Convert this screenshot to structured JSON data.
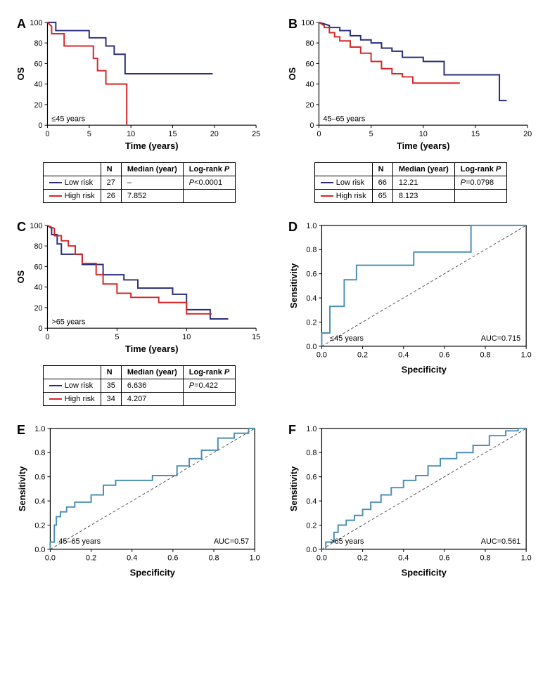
{
  "colors": {
    "low_risk": "#2a2d7c",
    "high_risk": "#d62728",
    "roc": "#4a8fb5",
    "axis": "#000000",
    "diag": "#555555"
  },
  "panelA": {
    "label": "A",
    "type": "line",
    "ylabel": "OS",
    "xlabel": "Time (years)",
    "ylim": [
      0,
      100
    ],
    "ytick_step": 20,
    "xlim": [
      0,
      25
    ],
    "xtick_step": 5,
    "corner": "≤45 years",
    "series": [
      {
        "name": "low",
        "points": [
          [
            0,
            100
          ],
          [
            1,
            100
          ],
          [
            1,
            92
          ],
          [
            5,
            92
          ],
          [
            5,
            85
          ],
          [
            7,
            85
          ],
          [
            7,
            77
          ],
          [
            8,
            77
          ],
          [
            8,
            69
          ],
          [
            9.3,
            69
          ],
          [
            9.3,
            50
          ],
          [
            19.8,
            50
          ]
        ]
      },
      {
        "name": "high",
        "points": [
          [
            0,
            100
          ],
          [
            0.5,
            96
          ],
          [
            0.5,
            89
          ],
          [
            2,
            89
          ],
          [
            2,
            77
          ],
          [
            3.5,
            77
          ],
          [
            5.5,
            77
          ],
          [
            5.5,
            65
          ],
          [
            6,
            65
          ],
          [
            6,
            53
          ],
          [
            7,
            53
          ],
          [
            7,
            40
          ],
          [
            9.5,
            40
          ],
          [
            9.5,
            0
          ]
        ]
      }
    ],
    "table": {
      "headers": [
        "",
        "N",
        "Median (year)",
        "Log-rank P"
      ],
      "rows": [
        {
          "legend": "low",
          "label": "Low risk",
          "cells": [
            "27",
            "–",
            "P<0.0001"
          ]
        },
        {
          "legend": "high",
          "label": "High risk",
          "cells": [
            "26",
            "7.852",
            ""
          ]
        }
      ]
    }
  },
  "panelB": {
    "label": "B",
    "type": "line",
    "ylabel": "OS",
    "xlabel": "Time (years)",
    "ylim": [
      0,
      100
    ],
    "ytick_step": 20,
    "xlim": [
      0,
      20
    ],
    "xtick_step": 5,
    "corner": "45–65 years",
    "series": [
      {
        "name": "low",
        "points": [
          [
            0,
            100
          ],
          [
            1,
            97
          ],
          [
            1,
            95
          ],
          [
            2,
            95
          ],
          [
            2,
            92
          ],
          [
            3,
            92
          ],
          [
            3,
            87
          ],
          [
            4,
            87
          ],
          [
            4,
            83
          ],
          [
            5,
            83
          ],
          [
            5,
            80
          ],
          [
            6,
            80
          ],
          [
            6,
            75
          ],
          [
            7,
            75
          ],
          [
            7,
            72
          ],
          [
            8,
            72
          ],
          [
            8,
            66
          ],
          [
            10,
            66
          ],
          [
            10,
            62
          ],
          [
            12,
            62
          ],
          [
            12,
            49
          ],
          [
            17.3,
            49
          ],
          [
            17.3,
            24
          ],
          [
            18,
            24
          ]
        ]
      },
      {
        "name": "high",
        "points": [
          [
            0,
            100
          ],
          [
            0.5,
            97
          ],
          [
            0.5,
            95
          ],
          [
            1,
            95
          ],
          [
            1,
            90
          ],
          [
            1.5,
            90
          ],
          [
            1.5,
            86
          ],
          [
            2,
            86
          ],
          [
            2,
            82
          ],
          [
            3,
            82
          ],
          [
            3,
            76
          ],
          [
            4,
            76
          ],
          [
            4,
            70
          ],
          [
            5,
            70
          ],
          [
            5,
            62
          ],
          [
            6,
            62
          ],
          [
            6,
            55
          ],
          [
            7,
            55
          ],
          [
            7,
            50
          ],
          [
            8,
            50
          ],
          [
            8,
            47
          ],
          [
            9,
            47
          ],
          [
            9,
            41
          ],
          [
            13.5,
            41
          ]
        ]
      }
    ],
    "table": {
      "headers": [
        "",
        "N",
        "Median (year)",
        "Log-rank P"
      ],
      "rows": [
        {
          "legend": "low",
          "label": "Low risk",
          "cells": [
            "66",
            "12.21",
            "P=0.0798"
          ]
        },
        {
          "legend": "high",
          "label": "High risk",
          "cells": [
            "65",
            "8.123",
            ""
          ]
        }
      ]
    }
  },
  "panelC": {
    "label": "C",
    "type": "line",
    "ylabel": "OS",
    "xlabel": "Time (years)",
    "ylim": [
      0,
      100
    ],
    "ytick_step": 20,
    "xlim": [
      0,
      15
    ],
    "xtick_step": 5,
    "corner": ">65 years",
    "series": [
      {
        "name": "low",
        "points": [
          [
            0,
            100
          ],
          [
            0.3,
            97
          ],
          [
            0.3,
            91
          ],
          [
            0.7,
            91
          ],
          [
            0.7,
            82
          ],
          [
            1,
            82
          ],
          [
            1,
            72
          ],
          [
            2.5,
            72
          ],
          [
            2.5,
            62
          ],
          [
            4,
            62
          ],
          [
            4,
            52
          ],
          [
            5.5,
            52
          ],
          [
            5.5,
            47
          ],
          [
            6.5,
            47
          ],
          [
            6.5,
            39
          ],
          [
            9,
            39
          ],
          [
            9,
            33
          ],
          [
            10,
            33
          ],
          [
            10,
            18
          ],
          [
            11.7,
            18
          ],
          [
            11.7,
            9
          ],
          [
            13,
            9
          ]
        ]
      },
      {
        "name": "high",
        "points": [
          [
            0,
            100
          ],
          [
            0.5,
            97
          ],
          [
            0.5,
            90
          ],
          [
            1,
            90
          ],
          [
            1,
            85
          ],
          [
            1.5,
            85
          ],
          [
            1.5,
            80
          ],
          [
            2,
            80
          ],
          [
            2,
            72
          ],
          [
            2.5,
            72
          ],
          [
            2.5,
            63
          ],
          [
            3.5,
            63
          ],
          [
            3.5,
            52
          ],
          [
            4,
            52
          ],
          [
            4,
            43
          ],
          [
            5,
            43
          ],
          [
            5,
            34
          ],
          [
            6,
            34
          ],
          [
            6,
            30
          ],
          [
            8,
            30
          ],
          [
            8,
            25
          ],
          [
            10,
            25
          ],
          [
            10,
            14
          ],
          [
            11.8,
            14
          ]
        ]
      }
    ],
    "table": {
      "headers": [
        "",
        "N",
        "Median (year)",
        "Log-rank P"
      ],
      "rows": [
        {
          "legend": "low",
          "label": "Low risk",
          "cells": [
            "35",
            "6.636",
            "P=0.422"
          ]
        },
        {
          "legend": "high",
          "label": "High risk",
          "cells": [
            "34",
            "4.207",
            ""
          ]
        }
      ]
    }
  },
  "panelD": {
    "label": "D",
    "type": "line",
    "ylabel": "Sensitivity",
    "xlabel": "Specificity",
    "ylim": [
      0,
      1.0
    ],
    "ytick_step": 0.2,
    "xlim": [
      0,
      1.0
    ],
    "xtick_step": 0.2,
    "corner": "≤45 years",
    "auc_label": "AUC=0.715",
    "roc": [
      [
        0,
        0
      ],
      [
        0,
        0.11
      ],
      [
        0.04,
        0.11
      ],
      [
        0.04,
        0.33
      ],
      [
        0.11,
        0.33
      ],
      [
        0.11,
        0.55
      ],
      [
        0.17,
        0.55
      ],
      [
        0.17,
        0.67
      ],
      [
        0.45,
        0.67
      ],
      [
        0.45,
        0.78
      ],
      [
        0.73,
        0.78
      ],
      [
        0.73,
        1.0
      ],
      [
        1.0,
        1.0
      ]
    ]
  },
  "panelE": {
    "label": "E",
    "type": "line",
    "ylabel": "Sensitivity",
    "xlabel": "Specificity",
    "ylim": [
      0,
      1.0
    ],
    "ytick_step": 0.2,
    "xlim": [
      0,
      1.0
    ],
    "xtick_step": 0.2,
    "corner": "45–65 years",
    "auc_label": "AUC=0.57",
    "roc": [
      [
        0,
        0
      ],
      [
        0,
        0.06
      ],
      [
        0.02,
        0.06
      ],
      [
        0.02,
        0.2
      ],
      [
        0.03,
        0.2
      ],
      [
        0.03,
        0.27
      ],
      [
        0.05,
        0.27
      ],
      [
        0.05,
        0.31
      ],
      [
        0.08,
        0.31
      ],
      [
        0.08,
        0.35
      ],
      [
        0.12,
        0.35
      ],
      [
        0.12,
        0.39
      ],
      [
        0.2,
        0.39
      ],
      [
        0.2,
        0.45
      ],
      [
        0.26,
        0.45
      ],
      [
        0.26,
        0.53
      ],
      [
        0.32,
        0.53
      ],
      [
        0.32,
        0.57
      ],
      [
        0.41,
        0.57
      ],
      [
        0.41,
        0.57
      ],
      [
        0.5,
        0.57
      ],
      [
        0.5,
        0.61
      ],
      [
        0.62,
        0.61
      ],
      [
        0.62,
        0.69
      ],
      [
        0.68,
        0.69
      ],
      [
        0.68,
        0.75
      ],
      [
        0.74,
        0.75
      ],
      [
        0.74,
        0.82
      ],
      [
        0.82,
        0.82
      ],
      [
        0.82,
        0.92
      ],
      [
        0.9,
        0.92
      ],
      [
        0.9,
        0.96
      ],
      [
        0.97,
        0.96
      ],
      [
        0.97,
        1.0
      ],
      [
        1.0,
        1.0
      ]
    ]
  },
  "panelF": {
    "label": "F",
    "type": "line",
    "ylabel": "Sensitivity",
    "xlabel": "Specificity",
    "ylim": [
      0,
      1.0
    ],
    "ytick_step": 0.2,
    "xlim": [
      0,
      1.0
    ],
    "xtick_step": 0.2,
    "corner": ">65 years",
    "auc_label": "AUC=0.561",
    "roc": [
      [
        0,
        0
      ],
      [
        0.02,
        0
      ],
      [
        0.02,
        0.06
      ],
      [
        0.06,
        0.06
      ],
      [
        0.06,
        0.14
      ],
      [
        0.08,
        0.14
      ],
      [
        0.08,
        0.2
      ],
      [
        0.12,
        0.2
      ],
      [
        0.12,
        0.24
      ],
      [
        0.16,
        0.24
      ],
      [
        0.16,
        0.28
      ],
      [
        0.2,
        0.28
      ],
      [
        0.2,
        0.33
      ],
      [
        0.24,
        0.33
      ],
      [
        0.24,
        0.39
      ],
      [
        0.29,
        0.39
      ],
      [
        0.29,
        0.45
      ],
      [
        0.34,
        0.45
      ],
      [
        0.34,
        0.51
      ],
      [
        0.4,
        0.51
      ],
      [
        0.4,
        0.57
      ],
      [
        0.46,
        0.57
      ],
      [
        0.46,
        0.61
      ],
      [
        0.52,
        0.61
      ],
      [
        0.52,
        0.69
      ],
      [
        0.58,
        0.69
      ],
      [
        0.58,
        0.75
      ],
      [
        0.66,
        0.75
      ],
      [
        0.66,
        0.8
      ],
      [
        0.74,
        0.8
      ],
      [
        0.74,
        0.86
      ],
      [
        0.82,
        0.86
      ],
      [
        0.82,
        0.94
      ],
      [
        0.9,
        0.94
      ],
      [
        0.9,
        0.98
      ],
      [
        0.96,
        0.98
      ],
      [
        0.96,
        1.0
      ],
      [
        1.0,
        1.0
      ]
    ]
  }
}
